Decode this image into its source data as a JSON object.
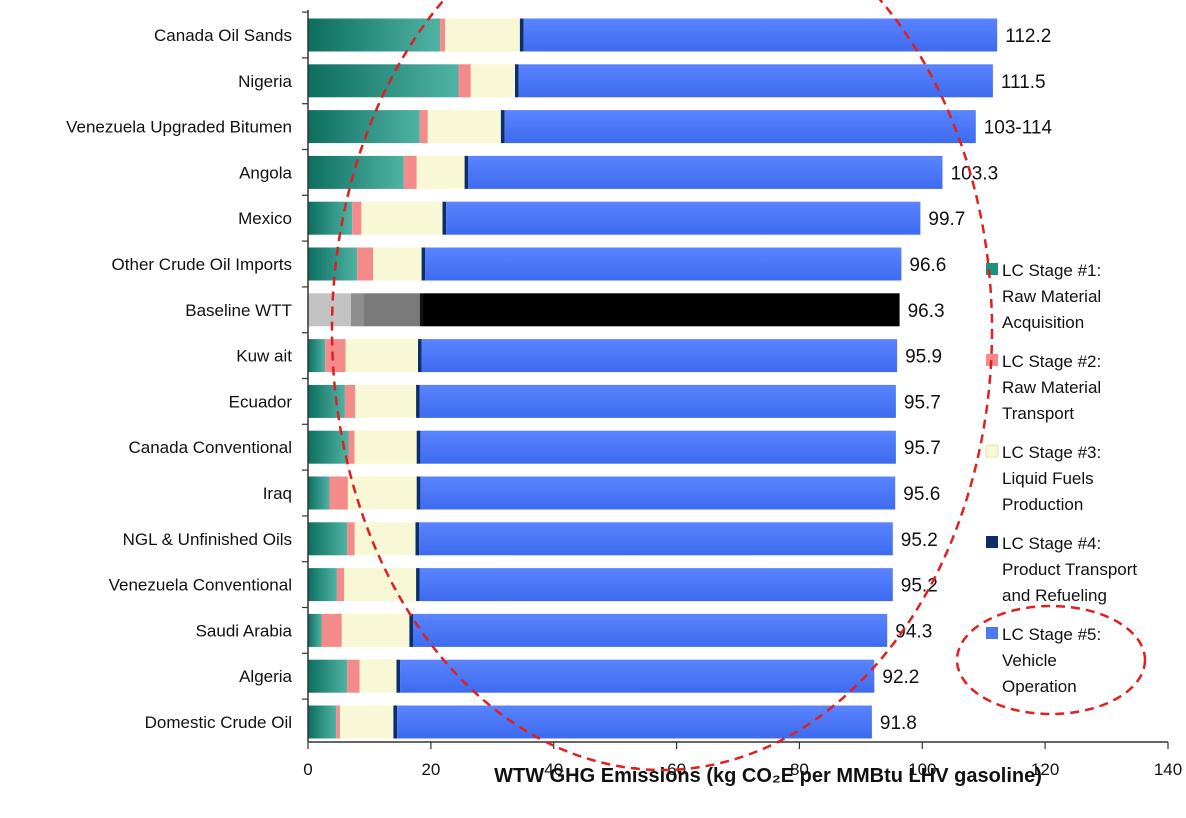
{
  "chart_data": {
    "type": "bar",
    "orientation": "horizontal",
    "stacked": true,
    "xlabel": "WTW GHG Emissions (kg CO₂E per MMBtu LHV gasoline)",
    "xlim": [
      0,
      140
    ],
    "xticks": [
      0,
      20,
      40,
      60,
      80,
      100,
      120,
      140
    ],
    "grid": false,
    "legend_position": "right",
    "categories": [
      "Canada Oil Sands",
      "Nigeria",
      "Venezuela Upgraded Bitumen",
      "Angola",
      "Mexico",
      "Other Crude Oil Imports",
      "Baseline WTT",
      "Kuw ait",
      "Ecuador",
      "Canada Conventional",
      "Iraq",
      "NGL & Unfinished Oils",
      "Venezuela Conventional",
      "Saudi Arabia",
      "Algeria",
      "Domestic Crude Oil"
    ],
    "series": [
      {
        "name": "LC Stage #1: Raw Material Acquisition",
        "color": "#1f9080",
        "values": [
          21.5,
          24.5,
          18.2,
          15.6,
          7.2,
          8.0,
          7.0,
          2.8,
          6.0,
          6.6,
          3.5,
          6.4,
          4.7,
          2.2,
          6.4,
          4.6
        ]
      },
      {
        "name": "LC Stage #2: Raw Material Transport",
        "color": "#f58a8a",
        "values": [
          0.8,
          2.0,
          1.3,
          2.1,
          1.5,
          2.6,
          2.0,
          3.3,
          1.7,
          1.0,
          3.0,
          1.2,
          1.2,
          3.3,
          2.0,
          0.6
        ]
      },
      {
        "name": "LC Stage #3: Liquid Fuels Production",
        "color": "#f8f7d6",
        "values": [
          12.2,
          7.2,
          11.9,
          7.8,
          13.2,
          7.9,
          9.2,
          11.8,
          9.9,
          10.1,
          11.2,
          9.9,
          11.7,
          11.0,
          6.0,
          8.7
        ]
      },
      {
        "name": "LC Stage #4: Product Transport and Refueling",
        "color": "#0c2f6b",
        "values": [
          0.6,
          0.6,
          0.6,
          0.6,
          0.6,
          0.6,
          0.6,
          0.6,
          0.6,
          0.6,
          0.6,
          0.6,
          0.6,
          0.6,
          0.6,
          0.6
        ]
      },
      {
        "name": "LC Stage #5: Vehicle Operation",
        "color": "#4d78f5",
        "values": [
          77.1,
          77.2,
          76.7,
          77.2,
          77.2,
          77.5,
          77.5,
          77.4,
          77.5,
          77.4,
          77.3,
          77.1,
          77.0,
          77.2,
          77.2,
          77.3
        ]
      }
    ],
    "baseline_colors": [
      "#c3c3c3",
      "#8e8e8e",
      "#7a7a7a",
      "#111111",
      "#000000"
    ],
    "totals_labels": [
      "112.2",
      "111.5",
      "103-114",
      "103.3",
      "99.7",
      "96.6",
      "96.3",
      "95.9",
      "95.7",
      "95.7",
      "95.6",
      "95.2",
      "95.2",
      "94.3",
      "92.2",
      "91.8"
    ],
    "totals": [
      112.2,
      111.5,
      108.7,
      103.3,
      99.7,
      96.6,
      96.3,
      95.9,
      95.7,
      95.7,
      95.6,
      95.2,
      95.2,
      94.3,
      92.2,
      91.8
    ],
    "legend": [
      {
        "color": "#1f9080",
        "lines": [
          "LC Stage #1:",
          "Raw Material",
          "Acquisition"
        ]
      },
      {
        "color": "#f58a8a",
        "lines": [
          "LC Stage #2:",
          "Raw Material",
          "Transport"
        ]
      },
      {
        "color": "#f8f7d6",
        "lines": [
          "LC Stage #3:",
          "Liquid Fuels",
          "Production"
        ]
      },
      {
        "color": "#0c2f6b",
        "lines": [
          "LC Stage #4:",
          "Product Transport",
          "and Refueling"
        ]
      },
      {
        "color": "#4d78f5",
        "lines": [
          "LC Stage #5:",
          "Vehicle",
          "Operation"
        ]
      }
    ],
    "annotations": [
      {
        "type": "dashed-ellipse",
        "color": "#e02020",
        "target": "stage-5 bars"
      },
      {
        "type": "dashed-ellipse",
        "color": "#e02020",
        "target": "legend LC Stage #5"
      }
    ]
  }
}
